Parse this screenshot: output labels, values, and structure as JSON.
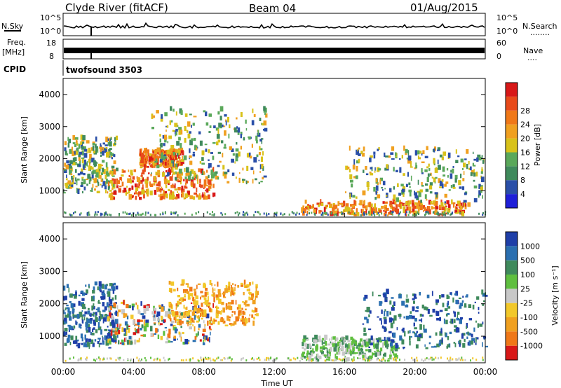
{
  "header": {
    "station": "Clyde River (fitACF)",
    "beam": "Beam 04",
    "date": "01/Aug/2015"
  },
  "param_panels": {
    "nsky_label": "N.Sky",
    "nsearch_label": "N.Search",
    "nsearch_dots": "........",
    "nsky_top": "10^5",
    "nsky_bottom": "10^0",
    "freq_label_1": "Freq.",
    "freq_label_2": "[MHz]",
    "freq_top": "18",
    "freq_bottom": "8",
    "nave_label": "Nave",
    "nave_dots": "....",
    "nave_top": "60",
    "nave_bottom": "0",
    "cpid_label": "CPID",
    "cpid_value": "twofsound 3503"
  },
  "colors": {
    "power": [
      "#1f1fd8",
      "#2a4fa8",
      "#3f8a5c",
      "#5aa85a",
      "#d8c21a",
      "#f0a020",
      "#f07818",
      "#e84a1a",
      "#d81818"
    ],
    "velocity": [
      "#d81818",
      "#f07818",
      "#f0a020",
      "#f2c82a",
      "#c8c8c8",
      "#5fbf3f",
      "#3f8a5c",
      "#2a6fb0",
      "#1f3fa8"
    ]
  },
  "chart_data": [
    {
      "type": "heatmap",
      "title": "Power",
      "ylabel": "Slant Range [km]",
      "xlabel": "",
      "x_ticks": [
        "00:00",
        "04:00",
        "08:00",
        "12:00",
        "16:00",
        "20:00",
        "00:00"
      ],
      "xlim_hours": [
        0,
        24
      ],
      "ylim": [
        180,
        4500
      ],
      "y_ticks": [
        1000,
        2000,
        3000,
        4000
      ],
      "colorbar": {
        "label": "Power [dB]",
        "ticks": [
          "4",
          "8",
          "12",
          "16",
          "20",
          "24",
          "28"
        ]
      },
      "echo_regions": [
        {
          "t0": 0.0,
          "t1": 3.0,
          "r0": 900,
          "r1": 2600,
          "level": "med"
        },
        {
          "t0": 2.5,
          "t1": 8.5,
          "r0": 700,
          "r1": 1600,
          "level": "high"
        },
        {
          "t0": 4.3,
          "t1": 6.8,
          "r0": 1700,
          "r1": 2200,
          "level": "high"
        },
        {
          "t0": 5.0,
          "t1": 11.5,
          "r0": 1200,
          "r1": 3500,
          "level": "med"
        },
        {
          "t0": 13.5,
          "t1": 23.0,
          "r0": 200,
          "r1": 600,
          "level": "high"
        },
        {
          "t0": 16.0,
          "t1": 24.0,
          "r0": 600,
          "r1": 2300,
          "level": "med"
        }
      ]
    },
    {
      "type": "heatmap",
      "title": "Velocity",
      "ylabel": "Slant Range [km]",
      "xlabel": "Time UT",
      "x_ticks": [
        "00:00",
        "04:00",
        "08:00",
        "12:00",
        "16:00",
        "20:00",
        "00:00"
      ],
      "xlim_hours": [
        0,
        24
      ],
      "ylim": [
        180,
        4500
      ],
      "y_ticks": [
        1000,
        2000,
        3000,
        4000
      ],
      "colorbar": {
        "label": "Velocity [m s⁻¹]",
        "ticks": [
          "1000",
          "500",
          "100",
          "25",
          "-25",
          "-100",
          "-500",
          "-1000"
        ]
      },
      "echo_regions": [
        {
          "t0": 0.0,
          "t1": 3.0,
          "r0": 600,
          "r1": 2600,
          "level": "toward"
        },
        {
          "t0": 2.5,
          "t1": 8.5,
          "r0": 700,
          "r1": 2000,
          "level": "mixed"
        },
        {
          "t0": 6.0,
          "t1": 11.0,
          "r0": 1300,
          "r1": 2600,
          "level": "away"
        },
        {
          "t0": 13.5,
          "t1": 19.0,
          "r0": 200,
          "r1": 900,
          "level": "toward-slow"
        },
        {
          "t0": 17.0,
          "t1": 24.0,
          "r0": 600,
          "r1": 2300,
          "level": "toward"
        }
      ]
    }
  ]
}
